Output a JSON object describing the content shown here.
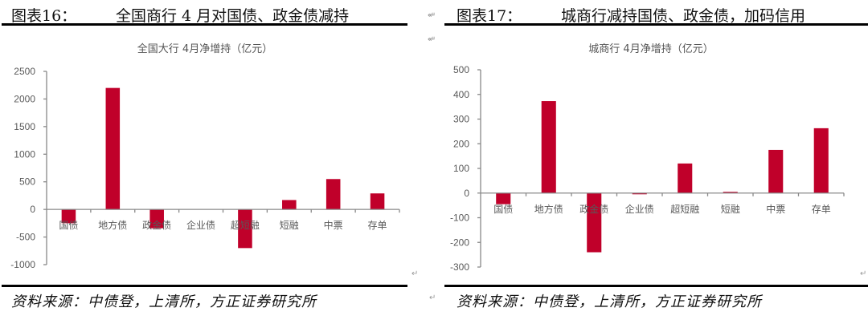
{
  "figures": [
    {
      "label": "图表16：",
      "title": "全国商行 4 月对国债、政金债减持",
      "chart_title": "全国大行 4月净增持（亿元）",
      "source": "资料来源：中债登，上清所，方正证券研究所"
    },
    {
      "label": "图表17：",
      "title": "城商行减持国债、政金债，加码信用",
      "chart_title": "城商行 4月净增持（亿元）",
      "source": "资料来源：中债登，上清所，方正证券研究所"
    }
  ],
  "colors": {
    "bar": "#C0002A",
    "axis": "#888888",
    "tick_label": "#595959"
  },
  "chart_data": [
    {
      "type": "bar",
      "title": "全国大行 4月净增持（亿元）",
      "xlabel": "",
      "ylabel": "亿元",
      "categories": [
        "国债",
        "地方债",
        "政金债",
        "企业债",
        "超短融",
        "短融",
        "中票",
        "存单"
      ],
      "values": [
        -250,
        2200,
        -340,
        0,
        -700,
        170,
        550,
        290
      ],
      "ylim": [
        -1000,
        2500
      ],
      "yticks": [
        -1000,
        -500,
        0,
        500,
        1000,
        1500,
        2000,
        2500
      ],
      "grid": false,
      "legend": null
    },
    {
      "type": "bar",
      "title": "城商行 4月净增持（亿元）",
      "xlabel": "",
      "ylabel": "亿元",
      "categories": [
        "国债",
        "地方债",
        "政金债",
        "企业债",
        "超短融",
        "短融",
        "中票",
        "存单"
      ],
      "values": [
        -45,
        373,
        -240,
        -5,
        120,
        5,
        175,
        263
      ],
      "ylim": [
        -300,
        500
      ],
      "yticks": [
        -300,
        -200,
        -100,
        0,
        100,
        200,
        300,
        400,
        500
      ],
      "grid": false,
      "legend": null
    }
  ]
}
